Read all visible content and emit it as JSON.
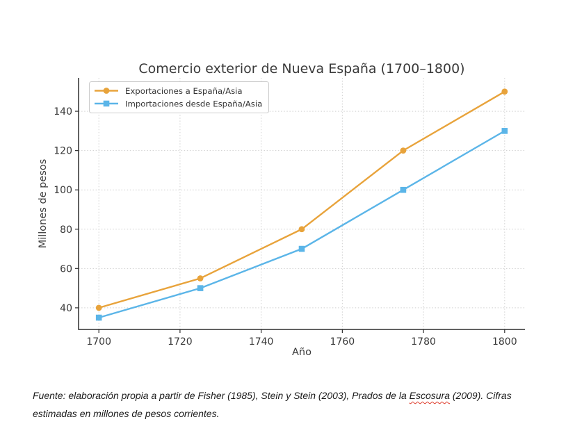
{
  "chart_data": {
    "type": "line",
    "title": "Comercio exterior de Nueva España (1700–1800)",
    "xlabel": "Año",
    "ylabel": "Millones de pesos",
    "x": [
      1700,
      1725,
      1750,
      1775,
      1800
    ],
    "series": [
      {
        "name": "Exportaciones a España/Asia",
        "values": [
          40,
          55,
          80,
          120,
          150
        ],
        "color": "#E8A33B",
        "marker": "circle"
      },
      {
        "name": "Importaciones desde España/Asia",
        "values": [
          35,
          50,
          70,
          100,
          130
        ],
        "color": "#5BB5E8",
        "marker": "square"
      }
    ],
    "xlim": [
      1695,
      1805
    ],
    "ylim": [
      29,
      157
    ],
    "xticks": [
      1700,
      1720,
      1740,
      1760,
      1780,
      1800
    ],
    "yticks": [
      40,
      60,
      80,
      100,
      120,
      140
    ],
    "grid": true,
    "grid_color": "#cfcfcf",
    "axis_color": "#2e2e2e",
    "text_color": "#3a3a3a",
    "legend_position": "upper-left"
  },
  "caption": {
    "part1": "Fuente: elaboración propia a partir de Fisher (1985), Stein y Stein (2003), Prados de la ",
    "misspelled_word": "Escosura",
    "part2": " (2009). Cifras estimadas en millones de pesos corrientes.",
    "spellcheck_color": "#de3b2b"
  }
}
